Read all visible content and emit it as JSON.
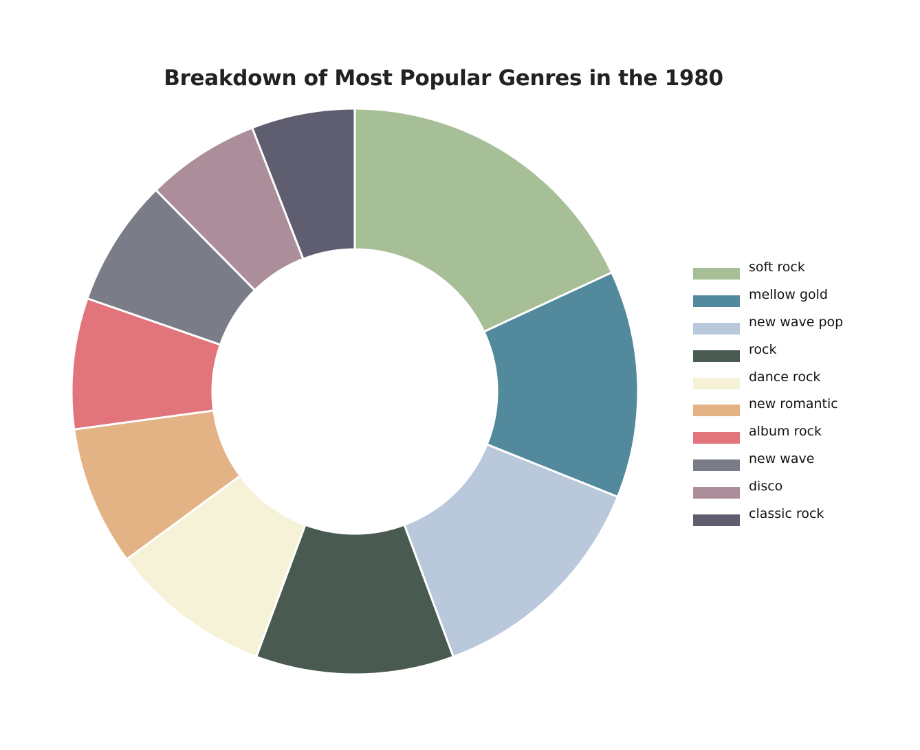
{
  "chart_data": {
    "type": "pie",
    "title": "Breakdown of Most Popular Genres in the 1980",
    "donut": true,
    "legend_position": "right",
    "categories": [
      "soft rock",
      "mellow gold",
      "new wave pop",
      "rock",
      "dance rock",
      "new romantic",
      "album rock",
      "new wave",
      "disco",
      "classic rock"
    ],
    "values": [
      18.4,
      13.2,
      13.5,
      11.5,
      9.4,
      8.1,
      7.6,
      7.4,
      6.6,
      6.0
    ],
    "colors": [
      "#a7bf97",
      "#52899c",
      "#b9c8db",
      "#495a51",
      "#f5f2d8",
      "#e3b386",
      "#e2747b",
      "#7a7d87",
      "#ac8e9b",
      "#5f5e70"
    ]
  }
}
